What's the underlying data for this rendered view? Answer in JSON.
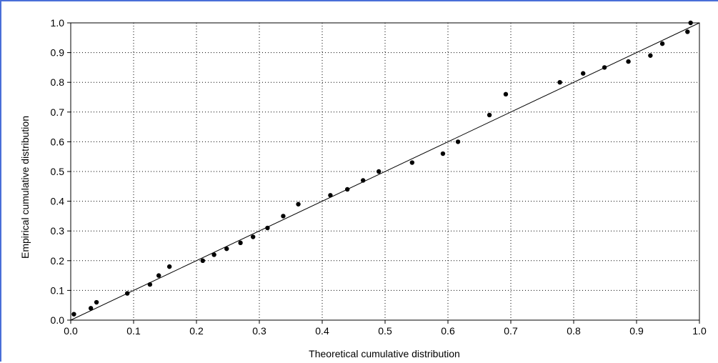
{
  "chart_data": {
    "type": "scatter",
    "title": "",
    "xlabel": "Theoretical cumulative distribution",
    "ylabel": "Empirical cumulative distribution",
    "xlim": [
      0.0,
      1.0
    ],
    "ylim": [
      0.0,
      1.0
    ],
    "xticks": [
      "0.0",
      "0.1",
      "0.2",
      "0.3",
      "0.4",
      "0.5",
      "0.6",
      "0.7",
      "0.8",
      "0.9",
      "1.0"
    ],
    "yticks": [
      "0.0",
      "0.1",
      "0.2",
      "0.3",
      "0.4",
      "0.5",
      "0.6",
      "0.7",
      "0.8",
      "0.9",
      "1.0"
    ],
    "grid": true,
    "legend": "none",
    "reference_line": {
      "x": [
        0.0,
        1.0
      ],
      "y": [
        0.0,
        1.0
      ]
    },
    "series": [
      {
        "x": [
          0.005,
          0.032,
          0.041,
          0.09,
          0.126,
          0.14,
          0.157,
          0.21,
          0.228,
          0.248,
          0.27,
          0.29,
          0.313,
          0.338,
          0.362,
          0.413,
          0.44,
          0.465,
          0.49,
          0.543,
          0.592,
          0.616,
          0.666,
          0.692,
          0.778,
          0.815,
          0.849,
          0.887,
          0.922,
          0.941,
          0.981,
          0.986
        ],
        "y": [
          0.02,
          0.04,
          0.06,
          0.09,
          0.12,
          0.15,
          0.18,
          0.2,
          0.22,
          0.24,
          0.26,
          0.28,
          0.31,
          0.35,
          0.39,
          0.42,
          0.44,
          0.47,
          0.5,
          0.53,
          0.56,
          0.6,
          0.69,
          0.76,
          0.8,
          0.83,
          0.85,
          0.87,
          0.89,
          0.93,
          0.97,
          1.0
        ]
      }
    ],
    "colors": {
      "points": "#000000",
      "line": "#000000",
      "grid": "#000000",
      "axes": "#000000"
    }
  }
}
